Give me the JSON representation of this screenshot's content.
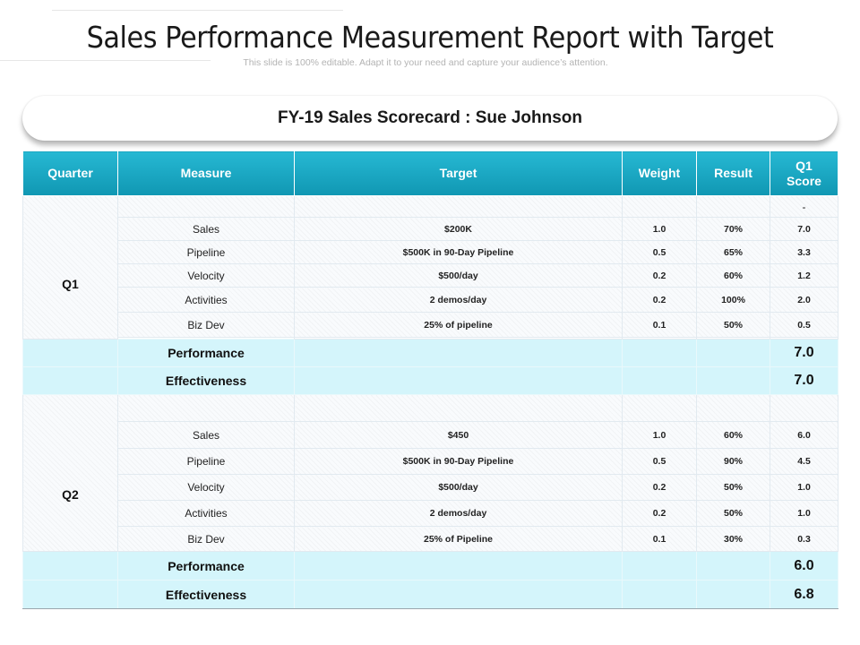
{
  "page": {
    "title": "Sales Performance Measurement Report with Target",
    "subtitle": "This slide is 100% editable. Adapt it to your need and capture your audience’s attention."
  },
  "scorecard": {
    "title": "FY-19 Sales Scorecard : Sue Johnson",
    "header_color": "#1aa9c4",
    "summary_color": "#d4f5fb",
    "columns": [
      "Quarter",
      "Measure",
      "Target",
      "Weight",
      "Result",
      "Q1 Score"
    ],
    "q1": {
      "label": "Q1",
      "top_score": "-",
      "rows": [
        {
          "measure": "Sales",
          "target": "$200K",
          "weight": "1.0",
          "result": "70%",
          "score": "7.0"
        },
        {
          "measure": "Pipeline",
          "target": "$500K in 90-Day Pipeline",
          "weight": "0.5",
          "result": "65%",
          "score": "3.3"
        },
        {
          "measure": "Velocity",
          "target": "$500/day",
          "weight": "0.2",
          "result": "60%",
          "score": "1.2"
        },
        {
          "measure": "Activities",
          "target": "2 demos/day",
          "weight": "0.2",
          "result": "100%",
          "score": "2.0"
        },
        {
          "measure": "Biz Dev",
          "target": "25% of pipeline",
          "weight": "0.1",
          "result": "50%",
          "score": "0.5"
        }
      ],
      "performance": {
        "label": "Performance",
        "value": "7.0"
      },
      "effectiveness": {
        "label": "Effectiveness",
        "value": "7.0"
      }
    },
    "q2": {
      "label": "Q2",
      "rows": [
        {
          "measure": "Sales",
          "target": "$450",
          "weight": "1.0",
          "result": "60%",
          "score": "6.0"
        },
        {
          "measure": "Pipeline",
          "target": "$500K in 90-Day Pipeline",
          "weight": "0.5",
          "result": "90%",
          "score": "4.5"
        },
        {
          "measure": "Velocity",
          "target": "$500/day",
          "weight": "0.2",
          "result": "50%",
          "score": "1.0"
        },
        {
          "measure": "Activities",
          "target": "2 demos/day",
          "weight": "0.2",
          "result": "50%",
          "score": "1.0"
        },
        {
          "measure": "Biz Dev",
          "target": "25% of Pipeline",
          "weight": "0.1",
          "result": "30%",
          "score": "0.3"
        }
      ],
      "performance": {
        "label": "Performance",
        "value": "6.0"
      },
      "effectiveness": {
        "label": "Effectiveness",
        "value": "6.8"
      }
    }
  }
}
